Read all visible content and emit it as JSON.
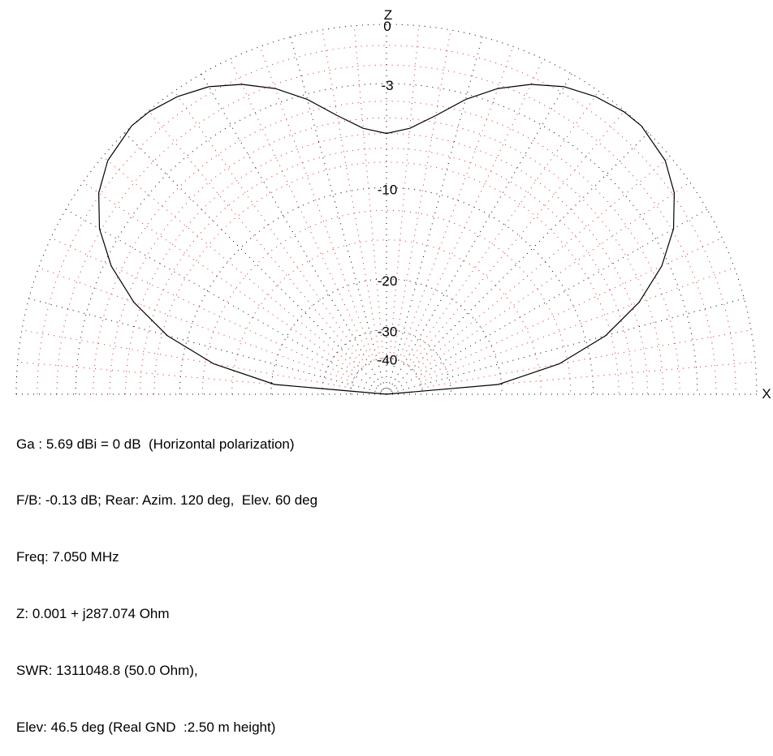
{
  "chart_data": {
    "type": "polar",
    "title": "",
    "axis_labels": {
      "vertical": "Z",
      "horizontal": "X"
    },
    "rings_db": [
      0,
      -3,
      -10,
      -20,
      -30,
      -40
    ],
    "ring_labels": [
      "0",
      "-3",
      "-10",
      "-20",
      "-30",
      "-40"
    ],
    "radial_spokes_deg": 5,
    "pattern_db_vs_elevation": {
      "elevation_deg": [
        0,
        5,
        10,
        15,
        20,
        25,
        30,
        35,
        40,
        46.5,
        50,
        55,
        60,
        65,
        70,
        75,
        80,
        85,
        90,
        95,
        100,
        105,
        110,
        115,
        120,
        125,
        130,
        133.5,
        140,
        145,
        150,
        155,
        160,
        165,
        170,
        175,
        180
      ],
      "gain_db": [
        -99,
        -20.5,
        -12.8,
        -8.4,
        -5.5,
        -3.4,
        -1.9,
        -0.9,
        -0.3,
        0.0,
        -0.05,
        -0.3,
        -0.7,
        -1.35,
        -2.2,
        -3.3,
        -4.6,
        -5.6,
        -6.0,
        -5.6,
        -4.6,
        -3.3,
        -2.2,
        -1.35,
        -0.7,
        -0.3,
        -0.05,
        0.0,
        -0.3,
        -0.9,
        -1.9,
        -3.4,
        -5.5,
        -8.4,
        -12.8,
        -20.5,
        -99
      ]
    },
    "grid": true
  },
  "info": {
    "line1": "Ga : 5.69 dBi = 0 dB  (Horizontal polarization)",
    "line2": "F/B: -0.13 dB; Rear: Azim. 120 deg,  Elev. 60 deg",
    "line3": "Freq: 7.050 MHz",
    "line4": "Z: 0.001 + j287.074 Ohm",
    "line5": "SWR: 1311048.8 (50.0 Ohm),",
    "line6": "Elev: 46.5 deg (Real GND  :2.50 m height)"
  },
  "colors": {
    "grid_main": "#000000",
    "grid_red": "#e02020",
    "trace": "#000000"
  }
}
